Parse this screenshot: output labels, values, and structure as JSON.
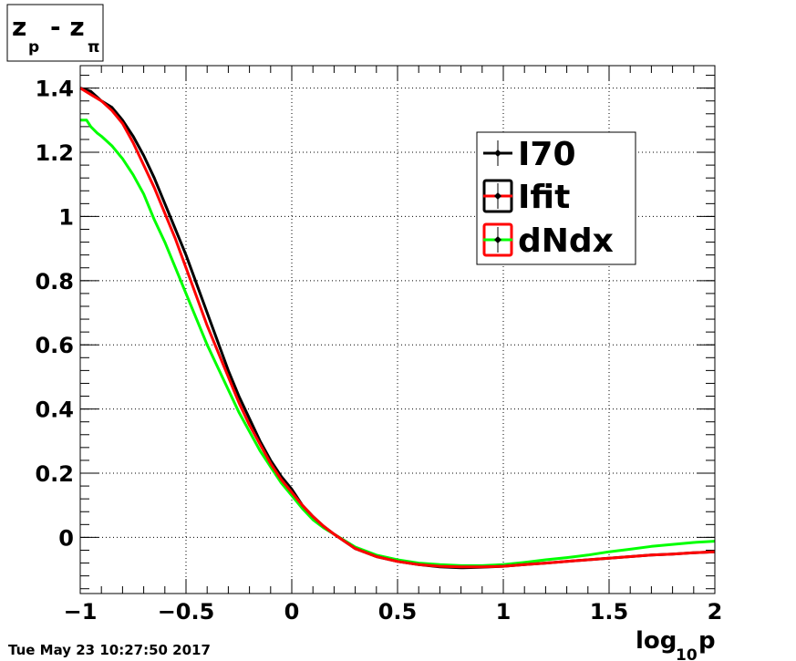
{
  "title": {
    "main1": "z",
    "sub1": "p",
    "dash": "- z",
    "sub2": "π"
  },
  "datestamp": "Tue May 23 10:27:50 2017",
  "colors": {
    "I70": "#000000",
    "Ifit": "#ff0000",
    "dNdx": "#00ff00",
    "frame": "#000000",
    "grid": "#000000"
  },
  "chart_data": {
    "type": "line",
    "xlabel": {
      "main": "log",
      "sub": "10",
      "suffix": "p"
    },
    "ylabel": "",
    "xlim": [
      -1,
      2
    ],
    "ylim": [
      -0.175,
      1.47
    ],
    "grid": true,
    "legend_position": "top-right",
    "x_ticks": [
      {
        "value": -1,
        "label": "−1"
      },
      {
        "value": -0.5,
        "label": "−0.5"
      },
      {
        "value": 0,
        "label": "0"
      },
      {
        "value": 0.5,
        "label": "0.5"
      },
      {
        "value": 1,
        "label": "1"
      },
      {
        "value": 1.5,
        "label": "1.5"
      },
      {
        "value": 2,
        "label": "2"
      }
    ],
    "y_ticks": [
      {
        "value": 0,
        "label": "0"
      },
      {
        "value": 0.2,
        "label": "0.2"
      },
      {
        "value": 0.4,
        "label": "0.4"
      },
      {
        "value": 0.6,
        "label": "0.6"
      },
      {
        "value": 0.8,
        "label": "0.8"
      },
      {
        "value": 1,
        "label": "1"
      },
      {
        "value": 1.2,
        "label": "1.2"
      },
      {
        "value": 1.4,
        "label": "1.4"
      }
    ],
    "series": [
      {
        "name": "I70",
        "color": "#000000",
        "x": [
          -1.0,
          -0.95,
          -0.9,
          -0.85,
          -0.8,
          -0.75,
          -0.7,
          -0.65,
          -0.6,
          -0.55,
          -0.5,
          -0.45,
          -0.4,
          -0.35,
          -0.3,
          -0.25,
          -0.2,
          -0.15,
          -0.1,
          -0.05,
          0.0,
          0.05,
          0.1,
          0.15,
          0.2,
          0.3,
          0.4,
          0.5,
          0.6,
          0.7,
          0.8,
          0.9,
          1.0,
          1.1,
          1.2,
          1.3,
          1.4,
          1.5,
          1.6,
          1.7,
          1.8,
          1.9,
          2.0
        ],
        "y": [
          1.4,
          1.39,
          1.36,
          1.34,
          1.3,
          1.25,
          1.19,
          1.12,
          1.04,
          0.96,
          0.88,
          0.79,
          0.7,
          0.61,
          0.52,
          0.44,
          0.37,
          0.3,
          0.24,
          0.19,
          0.15,
          0.1,
          0.065,
          0.035,
          0.01,
          -0.035,
          -0.06,
          -0.075,
          -0.085,
          -0.092,
          -0.095,
          -0.093,
          -0.09,
          -0.085,
          -0.08,
          -0.075,
          -0.07,
          -0.065,
          -0.06,
          -0.055,
          -0.052,
          -0.048,
          -0.045
        ]
      },
      {
        "name": "Ifit",
        "color": "#ff0000",
        "x": [
          -1.0,
          -0.95,
          -0.9,
          -0.85,
          -0.8,
          -0.75,
          -0.7,
          -0.65,
          -0.6,
          -0.55,
          -0.5,
          -0.45,
          -0.4,
          -0.35,
          -0.3,
          -0.25,
          -0.2,
          -0.15,
          -0.1,
          -0.05,
          0.0,
          0.05,
          0.1,
          0.15,
          0.2,
          0.3,
          0.4,
          0.5,
          0.6,
          0.7,
          0.8,
          0.9,
          1.0,
          1.1,
          1.2,
          1.3,
          1.4,
          1.5,
          1.6,
          1.7,
          1.8,
          1.9,
          2.0
        ],
        "y": [
          1.4,
          1.38,
          1.36,
          1.33,
          1.29,
          1.23,
          1.16,
          1.09,
          1.01,
          0.93,
          0.84,
          0.75,
          0.66,
          0.58,
          0.5,
          0.42,
          0.35,
          0.29,
          0.23,
          0.18,
          0.14,
          0.1,
          0.065,
          0.035,
          0.01,
          -0.035,
          -0.06,
          -0.075,
          -0.085,
          -0.09,
          -0.092,
          -0.092,
          -0.09,
          -0.085,
          -0.08,
          -0.075,
          -0.07,
          -0.065,
          -0.06,
          -0.055,
          -0.052,
          -0.048,
          -0.045
        ]
      },
      {
        "name": "dNdx",
        "color": "#00ff00",
        "x": [
          -1.0,
          -0.97,
          -0.95,
          -0.92,
          -0.9,
          -0.85,
          -0.8,
          -0.75,
          -0.7,
          -0.65,
          -0.6,
          -0.55,
          -0.5,
          -0.45,
          -0.4,
          -0.35,
          -0.3,
          -0.25,
          -0.2,
          -0.15,
          -0.1,
          -0.05,
          0.0,
          0.05,
          0.1,
          0.15,
          0.2,
          0.3,
          0.4,
          0.5,
          0.6,
          0.7,
          0.8,
          0.9,
          1.0,
          1.1,
          1.2,
          1.3,
          1.4,
          1.5,
          1.6,
          1.7,
          1.8,
          1.9,
          2.0
        ],
        "y": [
          1.3,
          1.3,
          1.28,
          1.26,
          1.25,
          1.22,
          1.18,
          1.13,
          1.07,
          0.99,
          0.92,
          0.84,
          0.76,
          0.68,
          0.6,
          0.53,
          0.46,
          0.39,
          0.33,
          0.27,
          0.22,
          0.17,
          0.13,
          0.09,
          0.055,
          0.03,
          0.01,
          -0.03,
          -0.055,
          -0.07,
          -0.08,
          -0.085,
          -0.088,
          -0.088,
          -0.085,
          -0.078,
          -0.07,
          -0.063,
          -0.055,
          -0.045,
          -0.037,
          -0.028,
          -0.022,
          -0.016,
          -0.012
        ]
      }
    ]
  }
}
